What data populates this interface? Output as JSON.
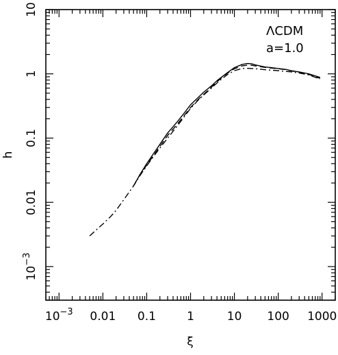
{
  "chart_data": {
    "type": "line",
    "xlabel": "ξ",
    "ylabel": "h",
    "x_scale": "log",
    "y_scale": "log",
    "xlim": [
      0.0005,
      2000
    ],
    "ylim": [
      0.0003,
      10
    ],
    "x_tick_labels": [
      {
        "value": 0.001,
        "base": "10",
        "exp": "−3"
      },
      {
        "value": 0.01,
        "text": "0.01"
      },
      {
        "value": 0.1,
        "text": "0.1"
      },
      {
        "value": 1,
        "text": "1"
      },
      {
        "value": 10,
        "text": "10"
      },
      {
        "value": 100,
        "text": "100"
      },
      {
        "value": 1000,
        "text": "1000"
      }
    ],
    "y_tick_labels": [
      {
        "value": 0.001,
        "base": "10",
        "exp": "−3"
      },
      {
        "value": 0.01,
        "text": "0.01"
      },
      {
        "value": 0.1,
        "text": "0.1"
      },
      {
        "value": 1,
        "text": "1"
      },
      {
        "value": 10,
        "text": "10"
      }
    ],
    "annotation": {
      "model": "ΛCDM",
      "scale": "a=1.0"
    },
    "grid": false,
    "series": [
      {
        "style": "solid",
        "x": [
          0.05,
          0.07,
          0.1,
          0.15,
          0.2,
          0.3,
          0.5,
          0.7,
          1,
          1.5,
          2,
          3,
          4,
          5,
          7,
          10,
          15,
          20,
          25,
          30,
          40,
          50,
          70,
          100,
          150,
          200,
          300,
          500,
          900
        ],
        "y": [
          0.018,
          0.027,
          0.04,
          0.06,
          0.08,
          0.12,
          0.18,
          0.24,
          0.33,
          0.43,
          0.52,
          0.65,
          0.78,
          0.88,
          1.05,
          1.25,
          1.4,
          1.45,
          1.43,
          1.38,
          1.32,
          1.28,
          1.25,
          1.21,
          1.17,
          1.12,
          1.07,
          1.0,
          0.88
        ]
      },
      {
        "style": "dashed",
        "x": [
          0.05,
          0.07,
          0.1,
          0.15,
          0.2,
          0.3,
          0.5,
          0.7,
          1,
          1.5,
          2,
          3,
          4,
          5,
          7,
          10,
          15,
          20,
          25,
          30,
          40,
          50,
          70,
          100,
          150,
          200,
          300,
          500,
          900
        ],
        "y": [
          0.018,
          0.027,
          0.038,
          0.056,
          0.074,
          0.11,
          0.165,
          0.22,
          0.3,
          0.4,
          0.48,
          0.62,
          0.75,
          0.86,
          1.03,
          1.2,
          1.33,
          1.37,
          1.36,
          1.33,
          1.29,
          1.26,
          1.23,
          1.2,
          1.16,
          1.11,
          1.06,
          0.98,
          0.85
        ]
      },
      {
        "style": "dash-dot",
        "x": [
          0.005,
          0.007,
          0.01,
          0.015,
          0.02,
          0.03,
          0.05,
          0.07,
          0.1,
          0.15,
          0.2,
          0.3,
          0.5,
          0.7,
          1,
          1.5,
          2,
          3,
          4,
          5,
          7,
          10,
          15,
          20,
          30,
          50,
          100,
          200,
          300,
          500,
          900
        ],
        "y": [
          0.003,
          0.0037,
          0.0046,
          0.006,
          0.0075,
          0.011,
          0.018,
          0.026,
          0.037,
          0.054,
          0.07,
          0.1,
          0.155,
          0.21,
          0.29,
          0.39,
          0.47,
          0.6,
          0.72,
          0.82,
          0.98,
          1.12,
          1.21,
          1.22,
          1.2,
          1.16,
          1.12,
          1.07,
          1.03,
          0.96,
          0.83
        ]
      }
    ]
  }
}
